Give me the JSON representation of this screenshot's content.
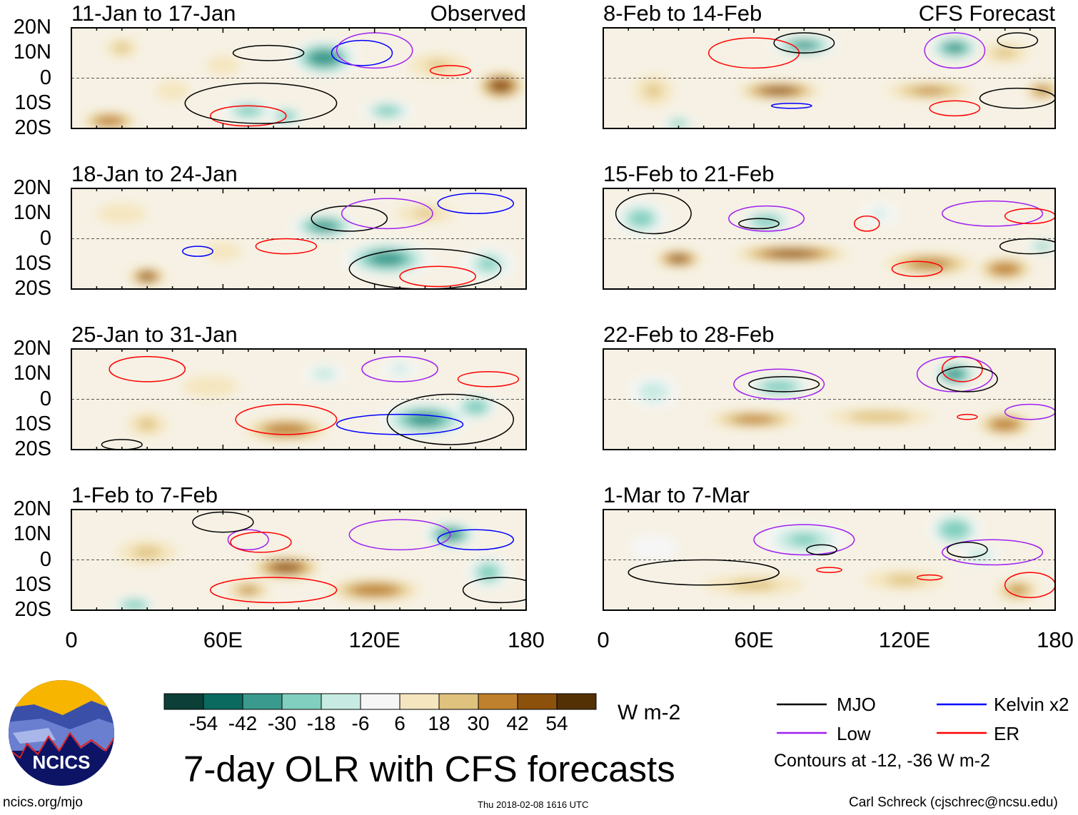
{
  "chart_data": {
    "type": "heatmap",
    "title": "7-day OLR with CFS forecasts",
    "units": "W m-2",
    "x_ticks": [
      "0",
      "60E",
      "120E",
      "180"
    ],
    "x_range": [
      0,
      180
    ],
    "y_ticks": [
      "20N",
      "10N",
      "0",
      "10S",
      "20S"
    ],
    "y_range": [
      -20,
      20
    ],
    "column_labels": [
      "Observed",
      "CFS Forecast"
    ],
    "colorbar": {
      "labels": [
        "-54",
        "-42",
        "-30",
        "-18",
        "-6",
        "6",
        "18",
        "30",
        "42",
        "54"
      ],
      "colors": [
        "#0b3f37",
        "#0a6a5f",
        "#3a9a8d",
        "#80cfbf",
        "#c7ebe2",
        "#f6f6f6",
        "#f5e6bf",
        "#dfc27d",
        "#bf812d",
        "#8c510a",
        "#543005"
      ]
    },
    "legend": [
      {
        "label": "MJO",
        "color": "#000000"
      },
      {
        "label": "Kelvin x2",
        "color": "#0000ff"
      },
      {
        "label": "Low",
        "color": "#a020f0"
      },
      {
        "label": "ER",
        "color": "#ff0000"
      }
    ],
    "contour_note": "Contours at -12, -36 W m-2",
    "panels": [
      {
        "title": "11-Jan to 17-Jan",
        "blobs": [
          [
            20,
            12,
            20,
            8,
            5
          ],
          [
            40,
            -5,
            12,
            10,
            6
          ],
          [
            15,
            -17,
            40,
            12,
            4
          ],
          [
            70,
            -13,
            -36,
            12,
            5
          ],
          [
            100,
            8,
            -50,
            15,
            8
          ],
          [
            85,
            -15,
            -40,
            8,
            4
          ],
          [
            125,
            -13,
            -35,
            12,
            5
          ],
          [
            170,
            -3,
            50,
            10,
            6
          ],
          [
            145,
            5,
            18,
            15,
            6
          ],
          [
            60,
            5,
            12,
            10,
            6
          ]
        ],
        "contours": [
          [
            "#000",
            78,
            10,
            14,
            3
          ],
          [
            "#0000ff",
            115,
            10,
            12,
            5
          ],
          [
            "#a020f0",
            120,
            11,
            15,
            7
          ],
          [
            "#ff0000",
            150,
            3,
            8,
            2
          ],
          [
            "#ff0000",
            70,
            -15,
            15,
            4
          ],
          [
            "#000",
            75,
            -10,
            30,
            8
          ]
        ]
      },
      {
        "title": "8-Feb to 14-Feb",
        "blobs": [
          [
            80,
            13,
            -45,
            15,
            5
          ],
          [
            140,
            12,
            -45,
            12,
            6
          ],
          [
            70,
            -5,
            45,
            18,
            4
          ],
          [
            130,
            -5,
            30,
            20,
            4
          ],
          [
            175,
            -5,
            35,
            8,
            4
          ],
          [
            20,
            -5,
            18,
            10,
            8
          ],
          [
            160,
            10,
            20,
            12,
            5
          ],
          [
            30,
            -18,
            -35,
            8,
            3
          ]
        ],
        "contours": [
          [
            "#ff0000",
            60,
            10,
            18,
            6
          ],
          [
            "#000",
            80,
            14,
            12,
            4
          ],
          [
            "#a020f0",
            140,
            11,
            12,
            7
          ],
          [
            "#000",
            165,
            15,
            8,
            3
          ],
          [
            "#0000ff",
            75,
            -11,
            8,
            1
          ],
          [
            "#ff0000",
            140,
            -12,
            10,
            3
          ],
          [
            "#000",
            165,
            -8,
            15,
            4
          ]
        ]
      },
      {
        "title": "18-Jan to 24-Jan",
        "blobs": [
          [
            100,
            5,
            -45,
            15,
            6
          ],
          [
            125,
            -8,
            -45,
            20,
            8
          ],
          [
            165,
            -10,
            -30,
            12,
            8
          ],
          [
            30,
            -15,
            45,
            8,
            4
          ],
          [
            20,
            10,
            12,
            15,
            6
          ],
          [
            60,
            -5,
            15,
            10,
            5
          ],
          [
            140,
            10,
            18,
            15,
            5
          ]
        ],
        "contours": [
          [
            "#000",
            110,
            8,
            15,
            5
          ],
          [
            "#a020f0",
            125,
            10,
            18,
            6
          ],
          [
            "#0000ff",
            160,
            14,
            15,
            4
          ],
          [
            "#ff0000",
            85,
            -3,
            12,
            3
          ],
          [
            "#0000ff",
            50,
            -5,
            6,
            2
          ],
          [
            "#000",
            140,
            -12,
            30,
            8
          ],
          [
            "#ff0000",
            145,
            -15,
            15,
            4
          ]
        ]
      },
      {
        "title": "15-Feb to 21-Feb",
        "blobs": [
          [
            15,
            8,
            -35,
            12,
            8
          ],
          [
            65,
            7,
            -40,
            12,
            5
          ],
          [
            30,
            -8,
            45,
            10,
            4
          ],
          [
            75,
            -6,
            45,
            25,
            4
          ],
          [
            130,
            -10,
            35,
            20,
            5
          ],
          [
            160,
            -12,
            40,
            12,
            5
          ],
          [
            175,
            -3,
            -35,
            8,
            3
          ],
          [
            110,
            10,
            -18,
            10,
            6
          ]
        ],
        "contours": [
          [
            "#a020f0",
            65,
            8,
            15,
            5
          ],
          [
            "#000",
            62,
            6,
            8,
            2
          ],
          [
            "#000",
            20,
            10,
            15,
            8
          ],
          [
            "#ff0000",
            105,
            6,
            5,
            3
          ],
          [
            "#ff0000",
            125,
            -12,
            10,
            3
          ],
          [
            "#a020f0",
            155,
            10,
            20,
            5
          ],
          [
            "#ff0000",
            170,
            9,
            10,
            3
          ],
          [
            "#000",
            170,
            -3,
            12,
            3
          ]
        ]
      },
      {
        "title": "25-Jan to 31-Jan",
        "blobs": [
          [
            85,
            -12,
            40,
            18,
            5
          ],
          [
            55,
            5,
            15,
            15,
            6
          ],
          [
            140,
            -8,
            -45,
            20,
            8
          ],
          [
            160,
            -3,
            -40,
            10,
            6
          ],
          [
            100,
            10,
            -25,
            10,
            5
          ],
          [
            130,
            12,
            -20,
            10,
            5
          ],
          [
            30,
            -10,
            20,
            10,
            6
          ]
        ],
        "contours": [
          [
            "#ff0000",
            85,
            -8,
            20,
            6
          ],
          [
            "#0000ff",
            130,
            -10,
            25,
            4
          ],
          [
            "#a020f0",
            130,
            12,
            15,
            5
          ],
          [
            "#000",
            150,
            -8,
            25,
            10
          ],
          [
            "#ff0000",
            165,
            8,
            12,
            3
          ],
          [
            "#ff0000",
            30,
            12,
            15,
            5
          ],
          [
            "#000",
            20,
            -18,
            8,
            2
          ]
        ]
      },
      {
        "title": "22-Feb to 28-Feb",
        "blobs": [
          [
            70,
            5,
            -40,
            15,
            5
          ],
          [
            20,
            3,
            -25,
            12,
            8
          ],
          [
            60,
            -8,
            35,
            20,
            4
          ],
          [
            110,
            -7,
            25,
            25,
            4
          ],
          [
            160,
            -10,
            40,
            12,
            5
          ],
          [
            140,
            10,
            -50,
            10,
            6
          ]
        ],
        "contours": [
          [
            "#a020f0",
            70,
            6,
            18,
            6
          ],
          [
            "#000",
            72,
            6,
            14,
            3
          ],
          [
            "#ff0000",
            143,
            12,
            8,
            5
          ],
          [
            "#a020f0",
            140,
            10,
            15,
            7
          ],
          [
            "#000",
            145,
            8,
            12,
            5
          ],
          [
            "#ff0000",
            145,
            -7,
            4,
            1
          ],
          [
            "#a020f0",
            170,
            -5,
            10,
            3
          ]
        ]
      },
      {
        "title": "1-Feb to 7-Feb",
        "blobs": [
          [
            85,
            -3,
            45,
            15,
            5
          ],
          [
            120,
            -12,
            40,
            20,
            5
          ],
          [
            30,
            3,
            20,
            15,
            6
          ],
          [
            150,
            10,
            -50,
            12,
            6
          ],
          [
            165,
            -5,
            -35,
            10,
            8
          ],
          [
            25,
            -18,
            -40,
            10,
            4
          ],
          [
            70,
            -12,
            30,
            10,
            4
          ]
        ],
        "contours": [
          [
            "#a020f0",
            70,
            8,
            8,
            4
          ],
          [
            "#ff0000",
            75,
            7,
            12,
            4
          ],
          [
            "#000",
            60,
            15,
            12,
            4
          ],
          [
            "#a020f0",
            130,
            10,
            20,
            6
          ],
          [
            "#0000ff",
            160,
            8,
            15,
            4
          ],
          [
            "#ff0000",
            80,
            -12,
            25,
            5
          ],
          [
            "#000",
            170,
            -12,
            15,
            5
          ]
        ]
      },
      {
        "title": "1-Mar to 7-Mar",
        "blobs": [
          [
            80,
            8,
            -30,
            20,
            8
          ],
          [
            140,
            12,
            -40,
            12,
            8
          ],
          [
            60,
            -10,
            20,
            25,
            5
          ],
          [
            120,
            -8,
            20,
            20,
            5
          ],
          [
            165,
            -12,
            30,
            10,
            5
          ],
          [
            20,
            5,
            -12,
            15,
            8
          ],
          [
            150,
            2,
            -25,
            10,
            5
          ]
        ],
        "contours": [
          [
            "#a020f0",
            80,
            8,
            20,
            6
          ],
          [
            "#000",
            87,
            4,
            6,
            2
          ],
          [
            "#ff0000",
            90,
            -4,
            5,
            1
          ],
          [
            "#000",
            40,
            -5,
            30,
            5
          ],
          [
            "#a020f0",
            155,
            3,
            20,
            5
          ],
          [
            "#000",
            145,
            4,
            8,
            3
          ],
          [
            "#ff0000",
            130,
            -7,
            5,
            1
          ],
          [
            "#ff0000",
            170,
            -10,
            10,
            5
          ]
        ]
      }
    ]
  },
  "logo": {
    "text": "NCICS"
  },
  "footer": {
    "url": "ncics.org/mjo",
    "timestamp": "Thu 2018-02-08 1616 UTC",
    "credit": "Carl Schreck (cjschrec@ncsu.edu)"
  }
}
